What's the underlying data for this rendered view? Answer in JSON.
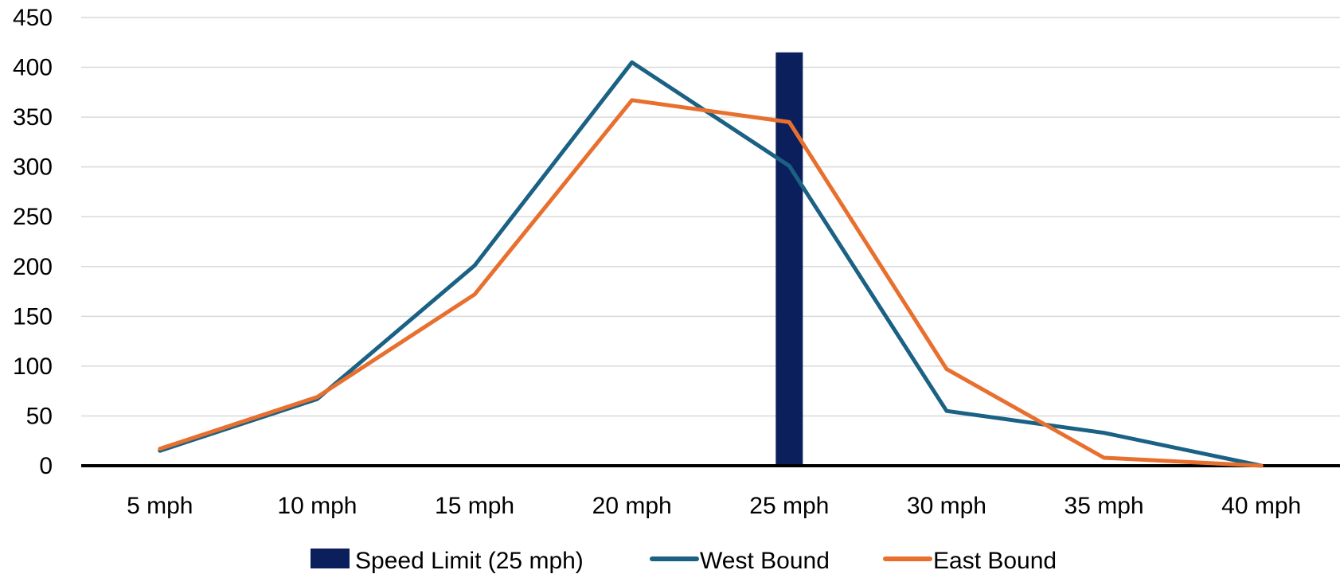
{
  "chart_data": {
    "type": "line",
    "title": "",
    "xlabel": "",
    "ylabel": "",
    "categories": [
      "5 mph",
      "10 mph",
      "15 mph",
      "20 mph",
      "25 mph",
      "30 mph",
      "35 mph",
      "40 mph"
    ],
    "ylim": [
      0,
      450
    ],
    "yticks": [
      0,
      50,
      100,
      150,
      200,
      250,
      300,
      350,
      400,
      450
    ],
    "grid": true,
    "legend_position": "bottom",
    "bar": {
      "name": "Speed Limit (25 mph)",
      "category": "25 mph",
      "value": 415,
      "color": "#0b1f5c"
    },
    "series": [
      {
        "name": "West Bound",
        "color": "#1a6184",
        "values": [
          15,
          67,
          201,
          405,
          301,
          55,
          33,
          0
        ]
      },
      {
        "name": "East Bound",
        "color": "#e8702f",
        "values": [
          17,
          69,
          172,
          367,
          345,
          97,
          8,
          0
        ]
      }
    ]
  }
}
